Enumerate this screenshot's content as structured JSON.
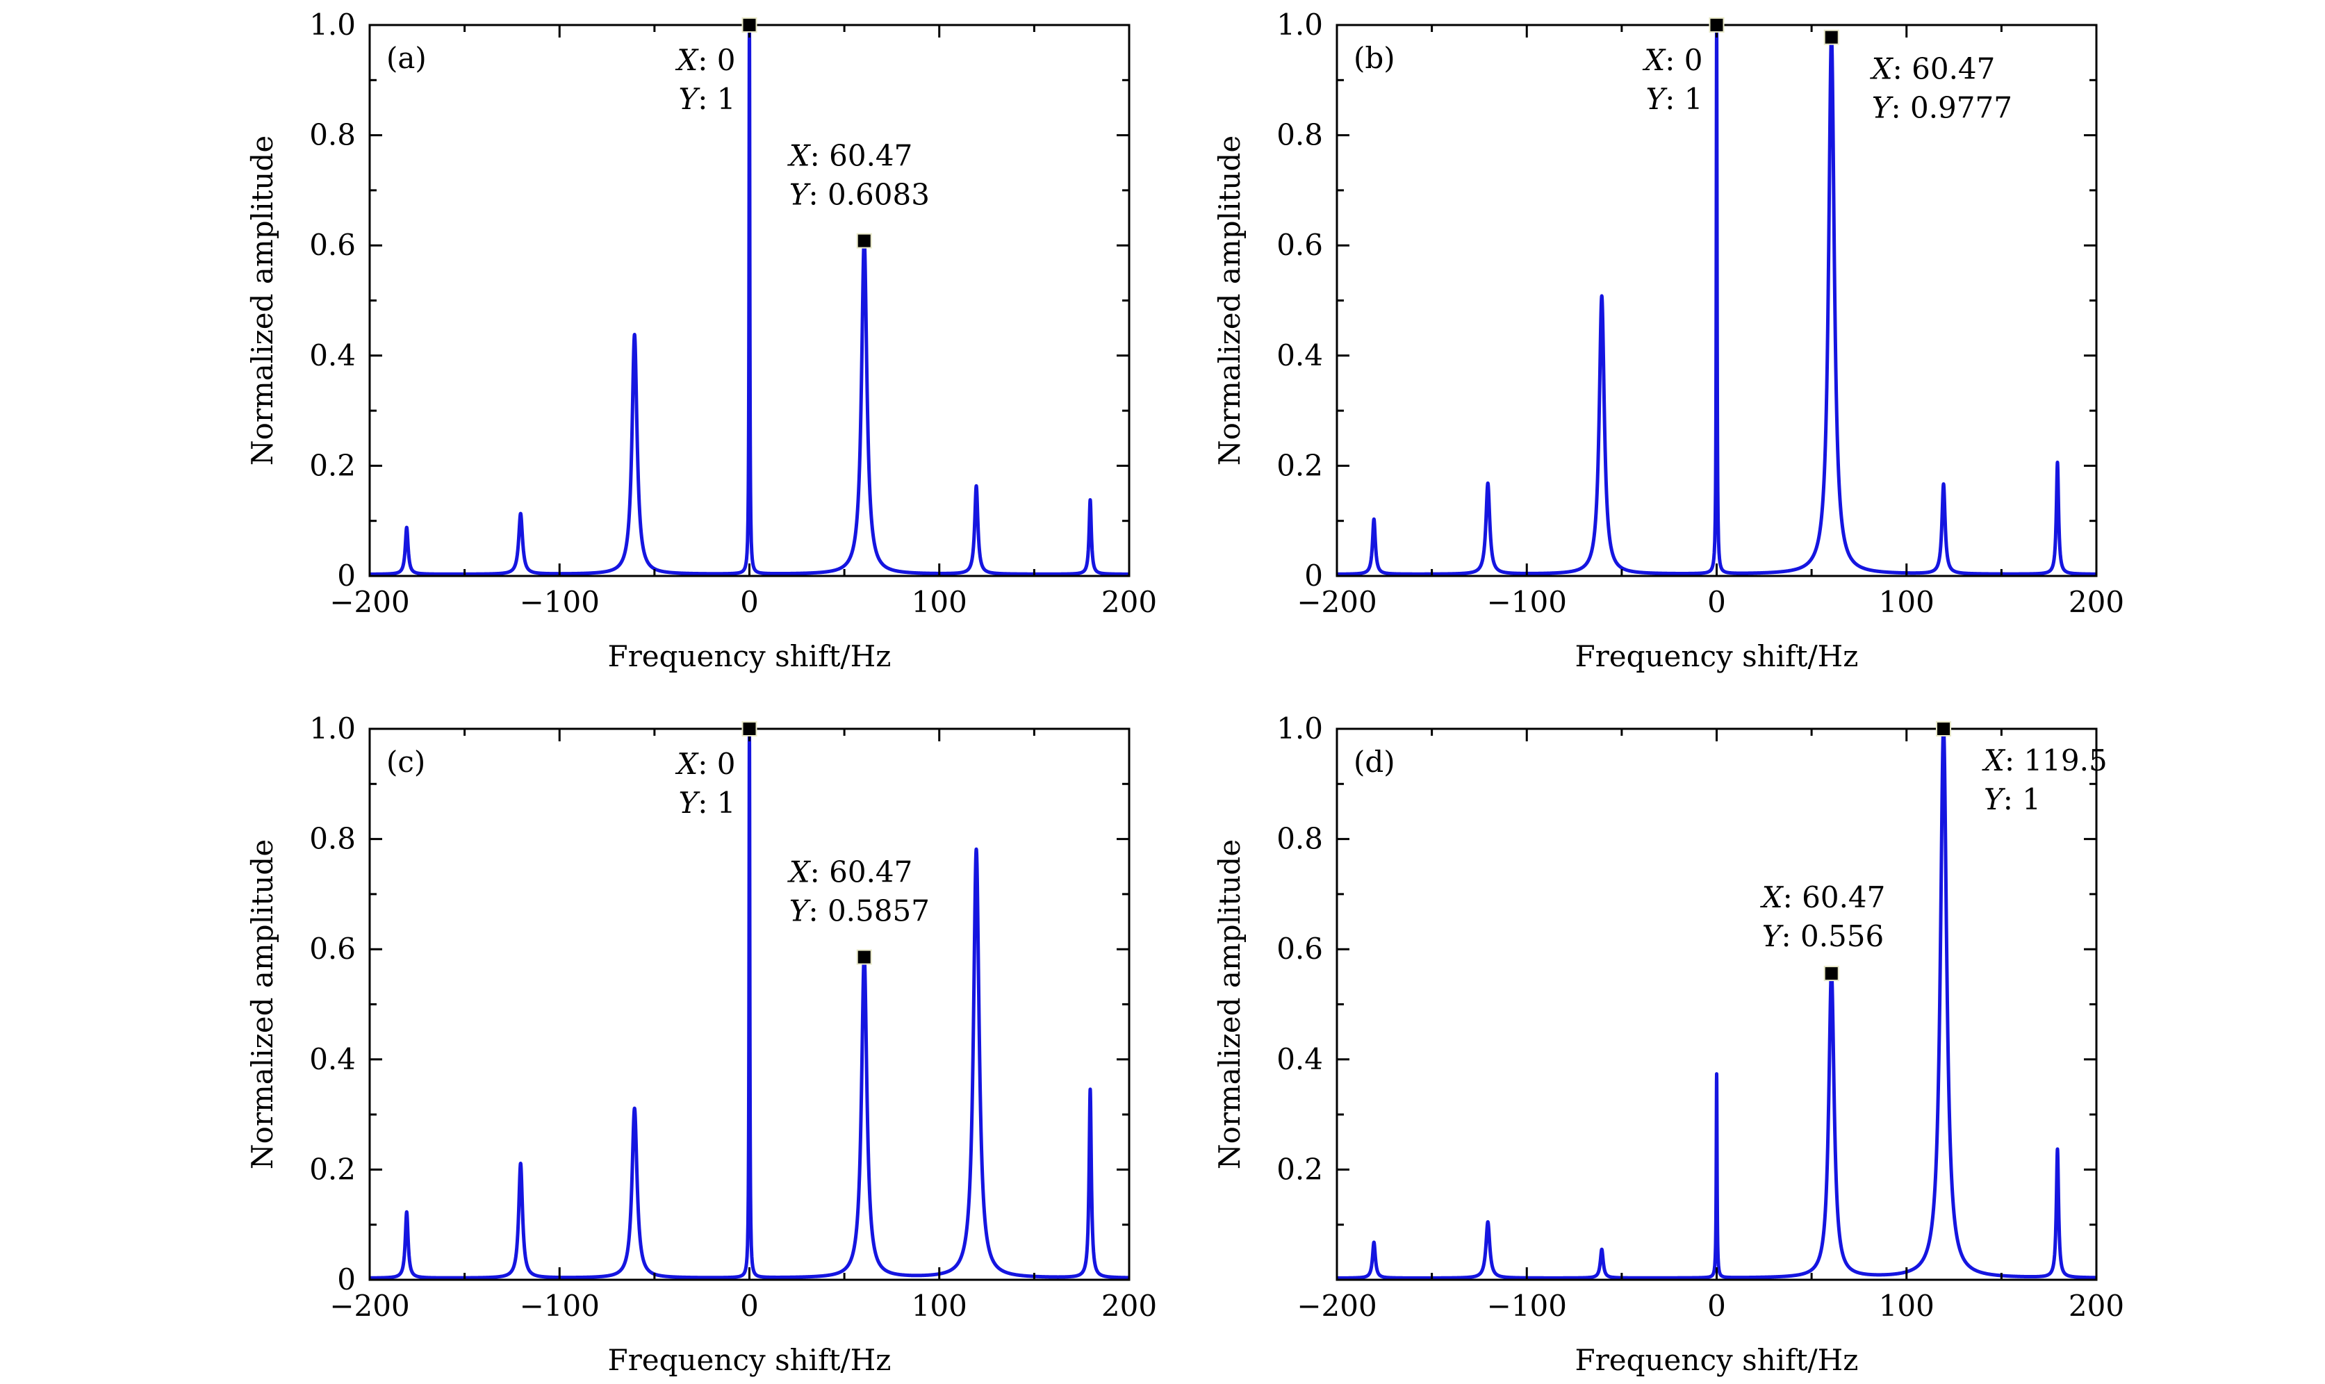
{
  "chart_data": [
    {
      "type": "line",
      "panel_label": "(a)",
      "xlabel": "Frequency shift/Hz",
      "ylabel": "Normalized amplitude",
      "xlim": [
        -200,
        200
      ],
      "ylim": [
        0,
        1
      ],
      "xticks": [
        -200,
        -100,
        0,
        100,
        200
      ],
      "xtick_labels": [
        "−200",
        "−100",
        "0",
        "100",
        "200"
      ],
      "yticks": [
        0,
        0.2,
        0.4,
        0.6,
        0.8,
        1.0
      ],
      "ytick_labels": [
        "0",
        "0.2",
        "0.4",
        "0.6",
        "0.8",
        "1.0"
      ],
      "grid": false,
      "color": "#1515e0",
      "peaks": [
        {
          "x": -180.5,
          "y": 0.085,
          "w": 0.9
        },
        {
          "x": -120.5,
          "y": 0.11,
          "w": 1.2
        },
        {
          "x": -60.5,
          "y": 0.435,
          "w": 1.6
        },
        {
          "x": 0,
          "y": 1.0,
          "w": 0.25
        },
        {
          "x": 60.47,
          "y": 0.6083,
          "w": 1.7
        },
        {
          "x": 119.5,
          "y": 0.16,
          "w": 1.0
        },
        {
          "x": 179.5,
          "y": 0.135,
          "w": 0.7
        }
      ],
      "datatips": [
        {
          "x": 0,
          "y": 1,
          "x_label": "X",
          "x_text": ": 0",
          "y_label": "Y",
          "y_text": ": 1",
          "side": "left"
        },
        {
          "x": 60.47,
          "y": 0.6083,
          "x_label": "X",
          "x_text": ": 60.47",
          "y_label": "Y",
          "y_text": ": 0.6083",
          "side": "above"
        }
      ]
    },
    {
      "type": "line",
      "panel_label": "(b)",
      "xlabel": "Frequency shift/Hz",
      "ylabel": "Normalized amplitude",
      "xlim": [
        -200,
        200
      ],
      "ylim": [
        0,
        1
      ],
      "xticks": [
        -200,
        -100,
        0,
        100,
        200
      ],
      "xtick_labels": [
        "−200",
        "−100",
        "0",
        "100",
        "200"
      ],
      "yticks": [
        0,
        0.2,
        0.4,
        0.6,
        0.8,
        1.0
      ],
      "ytick_labels": [
        "0",
        "0.2",
        "0.4",
        "0.6",
        "0.8",
        "1.0"
      ],
      "grid": false,
      "color": "#1515e0",
      "peaks": [
        {
          "x": -180.5,
          "y": 0.1,
          "w": 0.9
        },
        {
          "x": -120.5,
          "y": 0.165,
          "w": 1.2
        },
        {
          "x": -60.5,
          "y": 0.505,
          "w": 1.6
        },
        {
          "x": 0,
          "y": 1.0,
          "w": 0.25
        },
        {
          "x": 60.47,
          "y": 0.9777,
          "w": 1.8
        },
        {
          "x": 119.5,
          "y": 0.163,
          "w": 1.0
        },
        {
          "x": 179.5,
          "y": 0.203,
          "w": 0.7
        }
      ],
      "datatips": [
        {
          "x": 0,
          "y": 1,
          "x_label": "X",
          "x_text": ": 0",
          "y_label": "Y",
          "y_text": ": 1",
          "side": "left"
        },
        {
          "x": 60.47,
          "y": 0.9777,
          "x_label": "X",
          "x_text": ": 60.47",
          "y_label": "Y",
          "y_text": ": 0.9777",
          "side": "right"
        }
      ]
    },
    {
      "type": "line",
      "panel_label": "(c)",
      "xlabel": "Frequency shift/Hz",
      "ylabel": "Normalized amplitude",
      "xlim": [
        -200,
        200
      ],
      "ylim": [
        0,
        1
      ],
      "xticks": [
        -200,
        -100,
        0,
        100,
        200
      ],
      "xtick_labels": [
        "−200",
        "−100",
        "0",
        "100",
        "200"
      ],
      "yticks": [
        0,
        0.2,
        0.4,
        0.6,
        0.8,
        1.0
      ],
      "ytick_labels": [
        "0",
        "0.2",
        "0.4",
        "0.6",
        "0.8",
        "1.0"
      ],
      "grid": false,
      "color": "#1515e0",
      "peaks": [
        {
          "x": -180.5,
          "y": 0.12,
          "w": 0.9
        },
        {
          "x": -120.5,
          "y": 0.208,
          "w": 1.2
        },
        {
          "x": -60.5,
          "y": 0.308,
          "w": 1.6
        },
        {
          "x": 0,
          "y": 1.0,
          "w": 0.25
        },
        {
          "x": 60.47,
          "y": 0.5857,
          "w": 1.7
        },
        {
          "x": 119.5,
          "y": 0.778,
          "w": 1.8
        },
        {
          "x": 179.5,
          "y": 0.342,
          "w": 0.7
        }
      ],
      "datatips": [
        {
          "x": 0,
          "y": 1,
          "x_label": "X",
          "x_text": ": 0",
          "y_label": "Y",
          "y_text": ": 1",
          "side": "left"
        },
        {
          "x": 60.47,
          "y": 0.5857,
          "x_label": "X",
          "x_text": ": 60.47",
          "y_label": "Y",
          "y_text": ": 0.5857",
          "side": "above"
        }
      ]
    },
    {
      "type": "line",
      "panel_label": "(d)",
      "xlabel": "Frequency shift/Hz",
      "ylabel": "Normalized amplitude",
      "xlim": [
        -200,
        200
      ],
      "ylim": [
        0,
        1
      ],
      "xticks": [
        -200,
        -100,
        0,
        100,
        200
      ],
      "xtick_labels": [
        "−200",
        "−100",
        "0",
        "100",
        "200"
      ],
      "yticks": [
        0.2,
        0.4,
        0.6,
        0.8,
        1.0
      ],
      "ytick_labels": [
        "0.2",
        "0.4",
        "0.6",
        "0.8",
        "1.0"
      ],
      "grid": false,
      "color": "#1515e0",
      "peaks": [
        {
          "x": -180.5,
          "y": 0.065,
          "w": 0.9
        },
        {
          "x": -120.5,
          "y": 0.102,
          "w": 1.2
        },
        {
          "x": -60.5,
          "y": 0.052,
          "w": 0.9
        },
        {
          "x": 0,
          "y": 0.37,
          "w": 0.25
        },
        {
          "x": 60.47,
          "y": 0.556,
          "w": 1.7
        },
        {
          "x": 119.5,
          "y": 1.0,
          "w": 2.0
        },
        {
          "x": 179.5,
          "y": 0.233,
          "w": 0.7
        }
      ],
      "datatips": [
        {
          "x": 119.5,
          "y": 1,
          "x_label": "X",
          "x_text": ": 119.5",
          "y_label": "Y",
          "y_text": ": 1",
          "side": "right"
        },
        {
          "x": 60.47,
          "y": 0.556,
          "x_label": "X",
          "x_text": ": 60.47",
          "y_label": "Y",
          "y_text": ": 0.556",
          "side": "left-above"
        }
      ]
    }
  ]
}
